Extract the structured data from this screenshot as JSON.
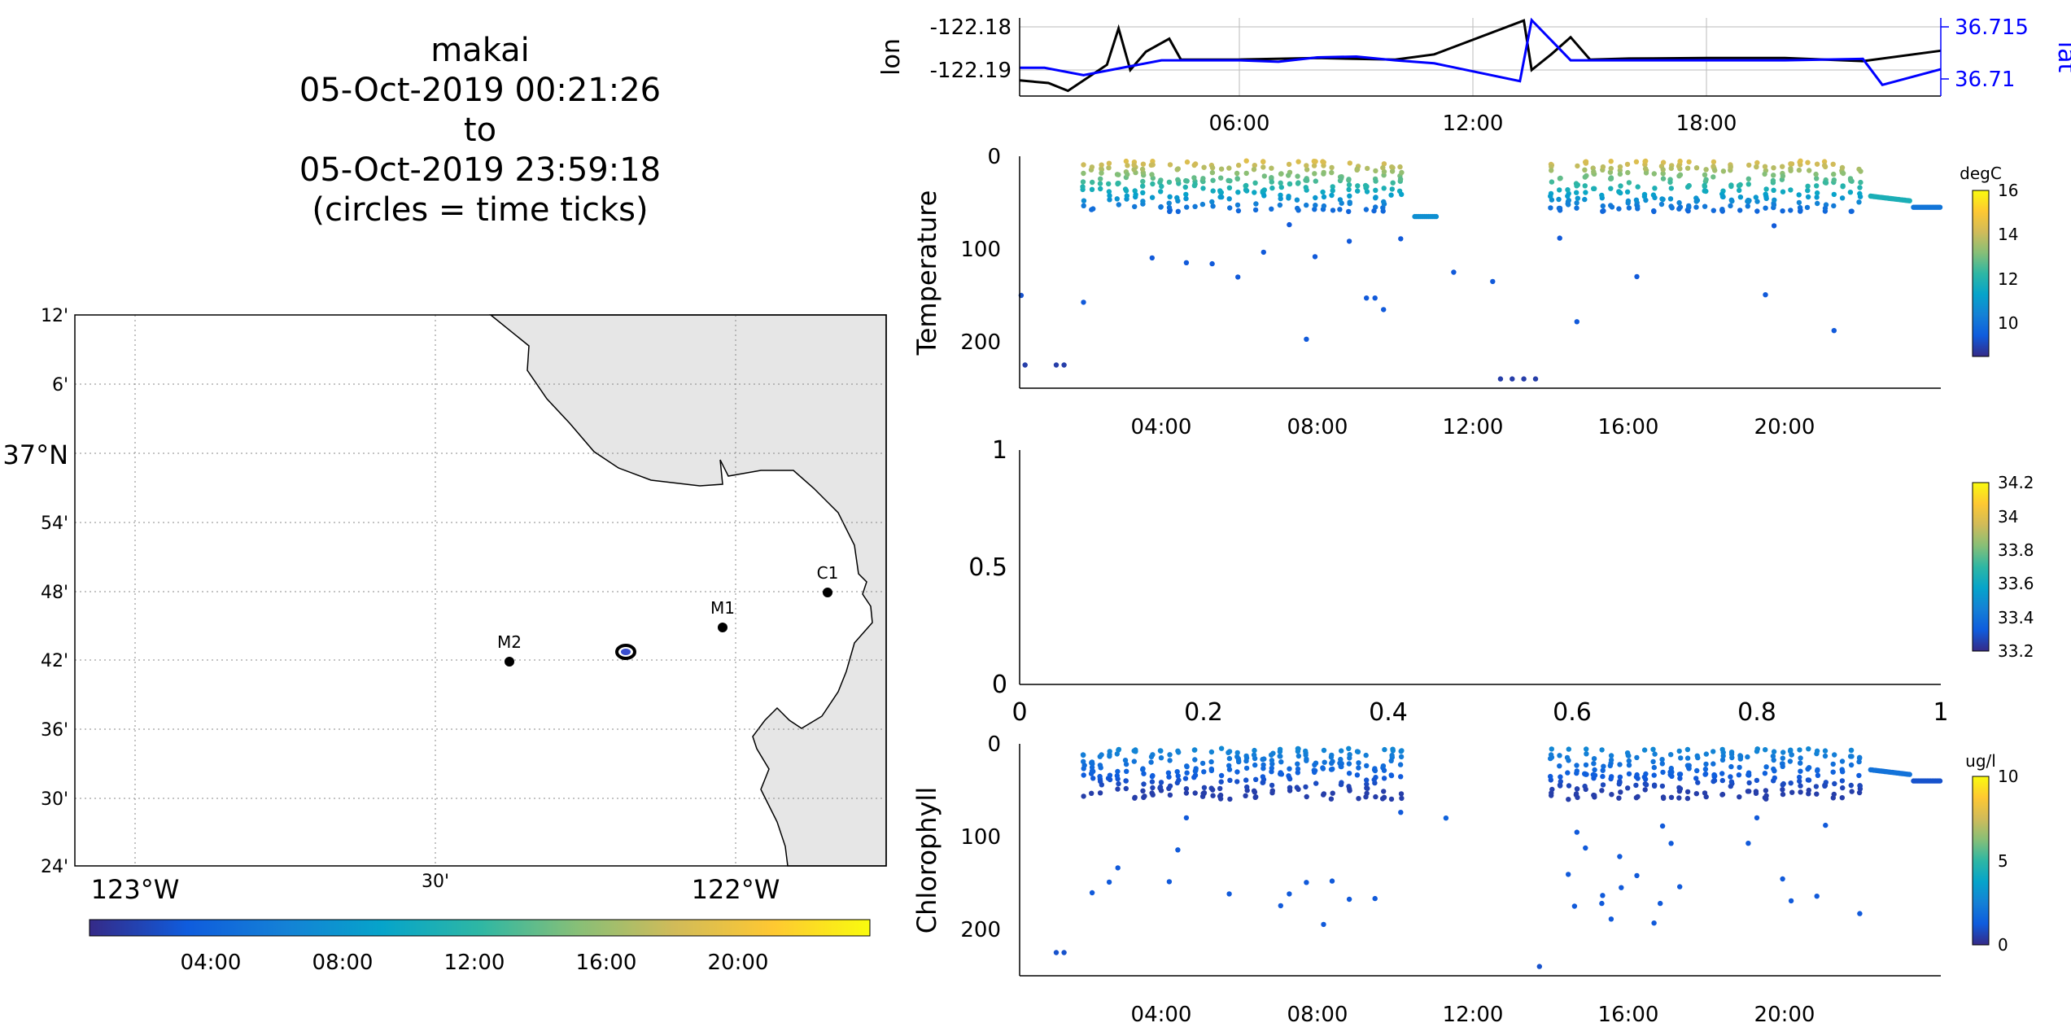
{
  "title": {
    "lines": [
      "makai",
      "05-Oct-2019 00:21:26",
      "to",
      "05-Oct-2019 23:59:18",
      "(circles = time ticks)"
    ]
  },
  "colors": {
    "line_black": "#000000",
    "line_blue": "#0000ff",
    "land": "#e6e6e6",
    "parula": [
      "#352a87",
      "#0f5cdd",
      "#1481d6",
      "#06a4ca",
      "#2eb7a4",
      "#87bf77",
      "#d1bb59",
      "#fec832",
      "#f9fb0e"
    ]
  },
  "map": {
    "lat_ticks": [
      "12'",
      "6'",
      "37°N",
      "54'",
      "48'",
      "42'",
      "36'",
      "30'",
      "24'"
    ],
    "lon_ticks": [
      "123°W",
      "30'",
      "122°W"
    ],
    "stations": [
      {
        "name": "C1",
        "lon": -121.843,
        "lat": 36.797
      },
      {
        "name": "M1",
        "lon": -121.982,
        "lat": 36.752
      },
      {
        "name": "M2",
        "lon": -122.378,
        "lat": 36.697
      }
    ],
    "glider_position": {
      "lon": -122.18,
      "lat": 36.712
    },
    "colorbar_ticks": [
      "04:00",
      "08:00",
      "12:00",
      "16:00",
      "20:00"
    ]
  },
  "chart_data": [
    {
      "type": "line",
      "ylabel_left": "lon",
      "ylabel_right": "lat",
      "left_ticks": [
        "-122.18",
        "-122.19"
      ],
      "right_ticks": [
        "36.715",
        "36.71"
      ],
      "x_ticks": [
        "06:00",
        "12:00",
        "18:00"
      ],
      "xlim_hours": [
        0.36,
        24.0
      ],
      "ylim_left": [
        -122.1945,
        -122.1795
      ],
      "ylim_right": [
        36.706,
        36.7165
      ],
      "series": [
        {
          "axis": "left",
          "color": "#000000",
          "x": [
            0.36,
            1.1,
            1.6,
            2.6,
            2.9,
            3.2,
            3.6,
            4.2,
            4.5,
            6,
            8,
            10,
            11,
            13.3,
            13.5,
            14.0,
            14.5,
            15,
            16,
            18,
            20,
            22,
            24
          ],
          "y": [
            -122.1915,
            -122.192,
            -122.1935,
            -122.1885,
            -122.1815,
            -122.1895,
            -122.186,
            -122.1835,
            -122.1875,
            -122.1875,
            -122.1872,
            -122.1875,
            -122.1865,
            -122.18,
            -122.1895,
            -122.1865,
            -122.1832,
            -122.1875,
            -122.1873,
            -122.1872,
            -122.1872,
            -122.1878,
            -122.1858
          ]
        },
        {
          "axis": "right",
          "color": "#0000ff",
          "x": [
            0.36,
            1.0,
            2.0,
            4.0,
            6,
            7,
            8,
            9,
            10,
            11,
            13.2,
            13.5,
            14.5,
            16,
            18,
            20,
            22,
            22.5,
            24
          ],
          "y": [
            36.7098,
            36.7098,
            36.7088,
            36.7108,
            36.7108,
            36.7106,
            36.7112,
            36.7113,
            36.7108,
            36.7104,
            36.708,
            36.7162,
            36.7108,
            36.7108,
            36.7108,
            36.7108,
            36.711,
            36.7075,
            36.7096
          ]
        }
      ]
    },
    {
      "type": "scatter",
      "ylabel": "Temperature",
      "y_ticks": [
        "0",
        "100",
        "200"
      ],
      "x_ticks": [
        "04:00",
        "08:00",
        "12:00",
        "16:00",
        "20:00"
      ],
      "xlim_hours": [
        0.36,
        24.0
      ],
      "ylim": [
        250,
        0
      ],
      "colorbar": {
        "label": "degC",
        "range": [
          8.5,
          16.2
        ],
        "ticks": [
          "16",
          "14",
          "12",
          "10"
        ]
      }
    },
    {
      "type": "scatter",
      "ylabel": "",
      "y_ticks": [
        "1",
        "0.5",
        "0"
      ],
      "x_ticks": [
        "0",
        "0.2",
        "0.4",
        "0.6",
        "0.8",
        "1"
      ],
      "xlim": [
        0,
        1
      ],
      "ylim": [
        0,
        1
      ],
      "colorbar": {
        "label": "",
        "range": [
          33.2,
          34.2
        ],
        "ticks": [
          "34.2",
          "34",
          "33.8",
          "33.6",
          "33.4",
          "33.2"
        ]
      }
    },
    {
      "type": "scatter",
      "ylabel": "Chlorophyll",
      "y_ticks": [
        "0",
        "100",
        "200"
      ],
      "x_ticks": [
        "04:00",
        "08:00",
        "12:00",
        "16:00",
        "20:00"
      ],
      "xlim_hours": [
        0.36,
        24.0
      ],
      "ylim": [
        250,
        0
      ],
      "colorbar": {
        "label": "ug/l",
        "range": [
          0,
          10
        ],
        "ticks": [
          "10",
          "5",
          "0"
        ]
      }
    }
  ]
}
